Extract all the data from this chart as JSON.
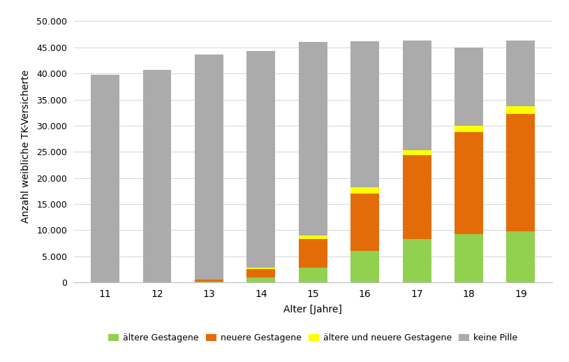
{
  "categories": [
    "11",
    "12",
    "13",
    "14",
    "15",
    "16",
    "17",
    "18",
    "19"
  ],
  "aeltere_Gestagene": [
    0,
    0,
    200,
    1000,
    2800,
    6000,
    8300,
    9300,
    9800
  ],
  "neuere_Gestagene": [
    0,
    0,
    400,
    1500,
    5500,
    11000,
    16000,
    19500,
    22500
  ],
  "aeltere_und_neuere": [
    0,
    0,
    0,
    300,
    700,
    1200,
    1000,
    1200,
    1500
  ],
  "keine_Pille": [
    39800,
    40700,
    43000,
    41500,
    37000,
    28000,
    21000,
    15000,
    12500
  ],
  "colors": {
    "aeltere_Gestagene": "#92D050",
    "neuere_Gestagene": "#E36C09",
    "aeltere_und_neuere": "#FFFF00",
    "keine_Pille": "#ABABAB"
  },
  "legend_labels": {
    "aeltere_Gestagene": "ältere Gestagene",
    "neuere_Gestagene": "neuere Gestagene",
    "aeltere_und_neuere": "ältere und neuere Gestagene",
    "keine_Pille": "keine Pille"
  },
  "xlabel": "Alter [Jahre]",
  "ylabel": "Anzahl weibliche TK-Versicherte",
  "ylim": [
    0,
    52000
  ],
  "yticks": [
    0,
    5000,
    10000,
    15000,
    20000,
    25000,
    30000,
    35000,
    40000,
    45000,
    50000
  ],
  "ytick_labels": [
    "0",
    "5.000",
    "10.000",
    "15.000",
    "20.000",
    "25.000",
    "30.000",
    "35.000",
    "40.000",
    "45.000",
    "50.000"
  ],
  "background_color": "#FFFFFF",
  "plot_bg_color": "#FFFFFF",
  "grid_color": "#D9D9D9",
  "bar_width": 0.55,
  "border_color": "#BFBFBF"
}
